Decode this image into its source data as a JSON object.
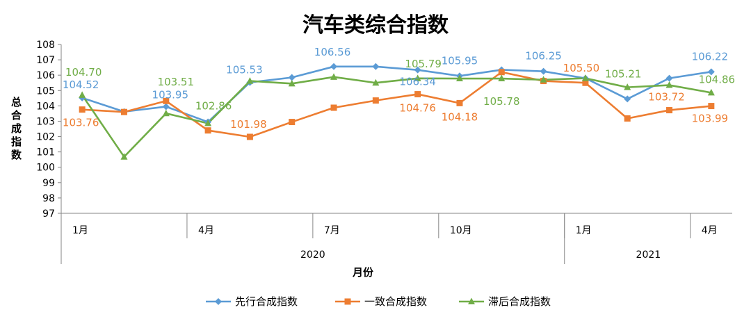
{
  "chart_data": {
    "type": "line",
    "title": "汽车类综合指数",
    "xlabel": "月份",
    "ylabel": "总合成指数",
    "ylim": [
      97,
      108
    ],
    "yticks": [
      "97",
      "98",
      "99",
      "100",
      "101",
      "102",
      "103",
      "104",
      "105",
      "106",
      "107",
      "108"
    ],
    "x_tick_labels": [
      {
        "index": 0,
        "label": "1月"
      },
      {
        "index": 3,
        "label": "4月"
      },
      {
        "index": 6,
        "label": "7月"
      },
      {
        "index": 9,
        "label": "10月"
      },
      {
        "index": 12,
        "label": "1月"
      },
      {
        "index": 15,
        "label": "4月"
      }
    ],
    "years": [
      {
        "label": "2020",
        "from": 0,
        "to": 11
      },
      {
        "label": "2021",
        "from": 12,
        "to": 15
      }
    ],
    "legend_position": "bottom",
    "series": [
      {
        "name": "先行合成指数",
        "color": "#5B9BD5",
        "marker": "diamond",
        "values": [
          104.52,
          103.62,
          103.95,
          102.95,
          105.53,
          105.85,
          106.56,
          106.56,
          106.34,
          105.95,
          106.35,
          106.25,
          105.8,
          104.45,
          105.8,
          106.22
        ],
        "labels": [
          {
            "index": 0,
            "text": "104.52"
          },
          {
            "index": 2,
            "text": "103.95"
          },
          {
            "index": 4,
            "text": "105.53"
          },
          {
            "index": 6,
            "text": "106.56"
          },
          {
            "index": 8,
            "text": "106.34"
          },
          {
            "index": 9,
            "text": "105.95"
          },
          {
            "index": 11,
            "text": "106.25"
          },
          {
            "index": 15,
            "text": "106.22"
          }
        ]
      },
      {
        "name": "一致合成指数",
        "color": "#ED7D31",
        "marker": "square",
        "values": [
          103.76,
          103.6,
          104.32,
          102.4,
          101.98,
          102.95,
          103.88,
          104.35,
          104.76,
          104.18,
          106.2,
          105.62,
          105.5,
          103.18,
          103.72,
          103.99
        ],
        "labels": [
          {
            "index": 0,
            "text": "103.76"
          },
          {
            "index": 4,
            "text": "101.98"
          },
          {
            "index": 8,
            "text": "104.76"
          },
          {
            "index": 9,
            "text": "104.18"
          },
          {
            "index": 12,
            "text": "105.50"
          },
          {
            "index": 14,
            "text": "103.72"
          },
          {
            "index": 15,
            "text": "103.99"
          }
        ]
      },
      {
        "name": "滞后合成指数",
        "color": "#70AD47",
        "marker": "triangle",
        "values": [
          104.7,
          100.68,
          103.51,
          102.86,
          105.62,
          105.45,
          105.88,
          105.5,
          105.79,
          105.78,
          105.78,
          105.7,
          105.8,
          105.21,
          105.35,
          104.86
        ],
        "labels": [
          {
            "index": 0,
            "text": "104.70"
          },
          {
            "index": 2,
            "text": "103.51"
          },
          {
            "index": 3,
            "text": "102.86"
          },
          {
            "index": 8,
            "text": "105.79"
          },
          {
            "index": 10,
            "text": "105.78"
          },
          {
            "index": 13,
            "text": "105.21"
          },
          {
            "index": 15,
            "text": "104.86"
          }
        ]
      }
    ]
  }
}
